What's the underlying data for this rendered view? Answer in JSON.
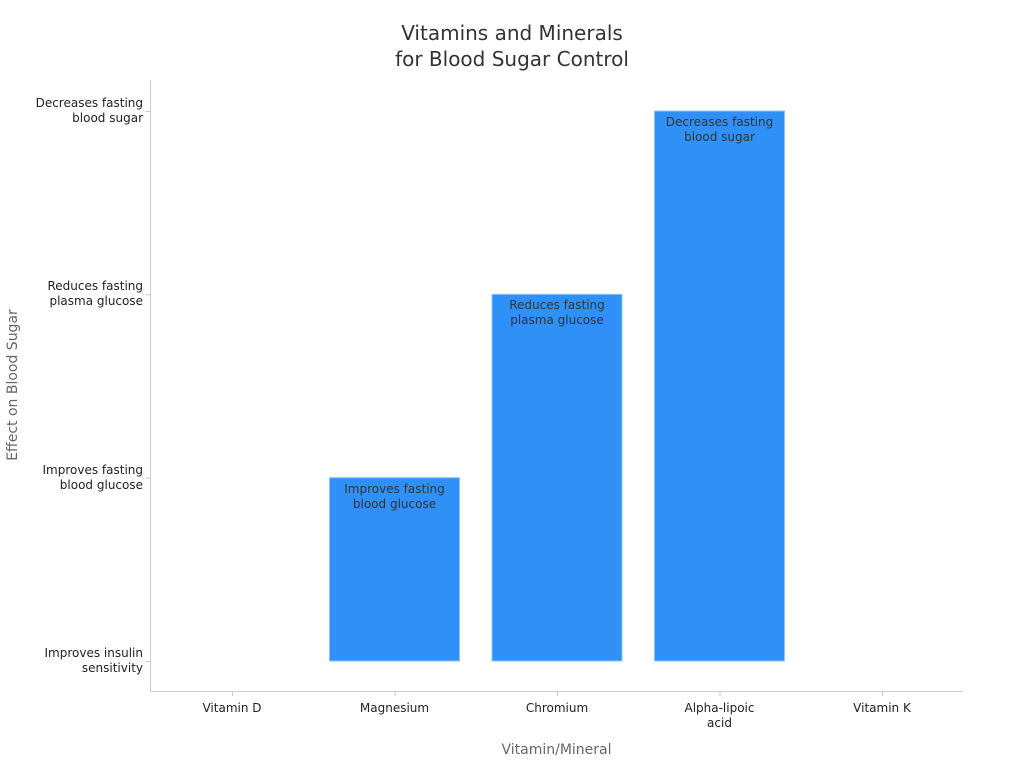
{
  "chart_data": {
    "type": "bar",
    "title": "Vitamins and Minerals\nfor Blood Sugar Control",
    "xlabel": "Vitamin/Mineral",
    "ylabel": "Effect on Blood Sugar",
    "y_categories": [
      "Improves insulin\nsensitivity",
      "Improves fasting\nblood glucose",
      "Reduces fasting\nplasma glucose",
      "Decreases fasting\nblood sugar"
    ],
    "categories": [
      "Vitamin D",
      "Magnesium",
      "Chromium",
      "Alpha-lipoic\nacid",
      "Vitamin K"
    ],
    "values": [
      "Improves insulin\nsensitivity",
      "Improves fasting\nblood glucose",
      "Reduces fasting\nplasma glucose",
      "Decreases fasting\nblood sugar",
      "Improves insulin\nsensitivity"
    ],
    "bar_labels": [
      "",
      "Improves fasting\nblood glucose",
      "Reduces fasting\nplasma glucose",
      "Decreases fasting\nblood sugar",
      ""
    ],
    "bar_color": "#2f91f7",
    "grid": false,
    "legend": "none"
  }
}
